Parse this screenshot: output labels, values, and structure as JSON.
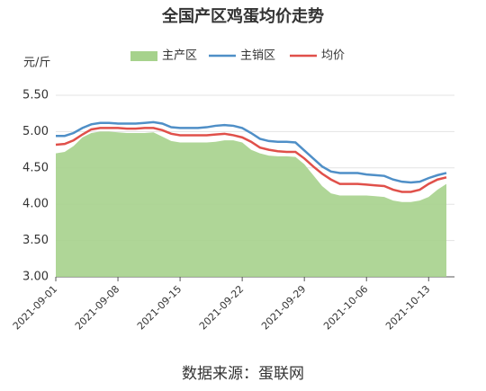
{
  "chart_data": {
    "type": "line",
    "title": "全国产区鸡蛋均价走势",
    "y_label": "元/斤",
    "source": "数据来源：蛋联网",
    "categories": [
      "2021-09-01",
      null,
      null,
      null,
      null,
      null,
      null,
      "2021-09-08",
      null,
      null,
      null,
      null,
      null,
      null,
      "2021-09-15",
      null,
      null,
      null,
      null,
      null,
      null,
      "2021-09-22",
      null,
      null,
      null,
      null,
      null,
      null,
      "2021-09-29",
      null,
      null,
      null,
      null,
      null,
      null,
      "2021-10-06",
      null,
      null,
      null,
      null,
      null,
      null,
      "2021-10-13",
      null,
      null
    ],
    "series": [
      {
        "name": "主产区",
        "color": "#a6d28c",
        "area": true,
        "values": [
          4.7,
          4.72,
          4.8,
          4.92,
          4.98,
          5.0,
          5.0,
          4.99,
          4.98,
          4.98,
          4.98,
          4.99,
          4.93,
          4.87,
          4.85,
          4.85,
          4.85,
          4.85,
          4.86,
          4.88,
          4.88,
          4.85,
          4.75,
          4.7,
          4.67,
          4.66,
          4.66,
          4.65,
          4.55,
          4.4,
          4.25,
          4.15,
          4.12,
          4.12,
          4.12,
          4.12,
          4.11,
          4.1,
          4.05,
          4.03,
          4.03,
          4.05,
          4.1,
          4.2,
          4.28
        ]
      },
      {
        "name": "主销区",
        "color": "#4f8fc7",
        "values": [
          4.94,
          4.94,
          4.98,
          5.05,
          5.1,
          5.12,
          5.12,
          5.11,
          5.11,
          5.11,
          5.12,
          5.13,
          5.11,
          5.06,
          5.05,
          5.05,
          5.05,
          5.06,
          5.08,
          5.09,
          5.08,
          5.05,
          4.98,
          4.9,
          4.87,
          4.86,
          4.86,
          4.85,
          4.74,
          4.63,
          4.52,
          4.45,
          4.43,
          4.43,
          4.43,
          4.41,
          4.4,
          4.39,
          4.34,
          4.31,
          4.3,
          4.31,
          4.36,
          4.4,
          4.43
        ]
      },
      {
        "name": "均价",
        "color": "#e0504a",
        "values": [
          4.82,
          4.83,
          4.88,
          4.96,
          5.03,
          5.05,
          5.05,
          5.05,
          5.04,
          5.04,
          5.05,
          5.05,
          5.02,
          4.97,
          4.95,
          4.95,
          4.95,
          4.95,
          4.96,
          4.97,
          4.95,
          4.92,
          4.86,
          4.78,
          4.75,
          4.73,
          4.72,
          4.72,
          4.63,
          4.52,
          4.42,
          4.34,
          4.28,
          4.28,
          4.28,
          4.27,
          4.26,
          4.25,
          4.2,
          4.17,
          4.17,
          4.2,
          4.28,
          4.34,
          4.37
        ]
      }
    ],
    "ylim": [
      3.0,
      5.5
    ],
    "yticks": [
      {
        "value": 3.0,
        "label": "3.00"
      },
      {
        "value": 3.5,
        "label": "3.50"
      },
      {
        "value": 4.0,
        "label": "4.00"
      },
      {
        "value": 4.5,
        "label": "4.50"
      },
      {
        "value": 5.0,
        "label": "5.00"
      },
      {
        "value": 5.5,
        "label": "5.50"
      }
    ],
    "grid": true
  }
}
